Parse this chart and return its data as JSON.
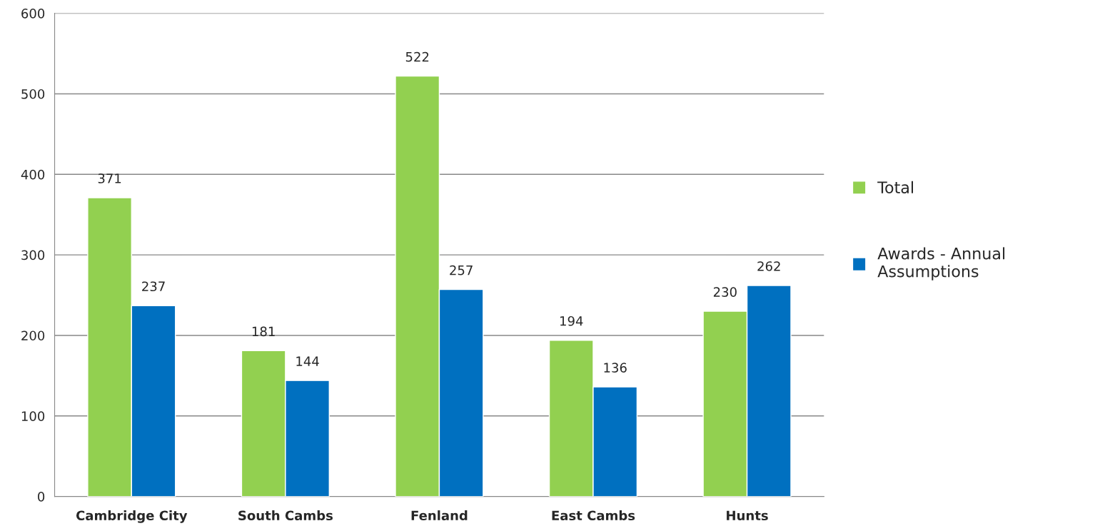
{
  "chart_data": {
    "type": "bar",
    "categories": [
      "Cambridge City",
      "South Cambs",
      "Fenland",
      "East Cambs",
      "Hunts"
    ],
    "series": [
      {
        "name": "Total",
        "color": "#92d050",
        "values": [
          371,
          181,
          522,
          194,
          230
        ]
      },
      {
        "name": "Awards - Annual\nAssumptions",
        "color": "#0070c0",
        "values": [
          237,
          144,
          257,
          136,
          262
        ]
      }
    ],
    "ylim": [
      0,
      600
    ],
    "yticks": [
      0,
      100,
      200,
      300,
      400,
      500,
      600
    ],
    "grid": "y",
    "legend": "right",
    "data_labels": true
  }
}
